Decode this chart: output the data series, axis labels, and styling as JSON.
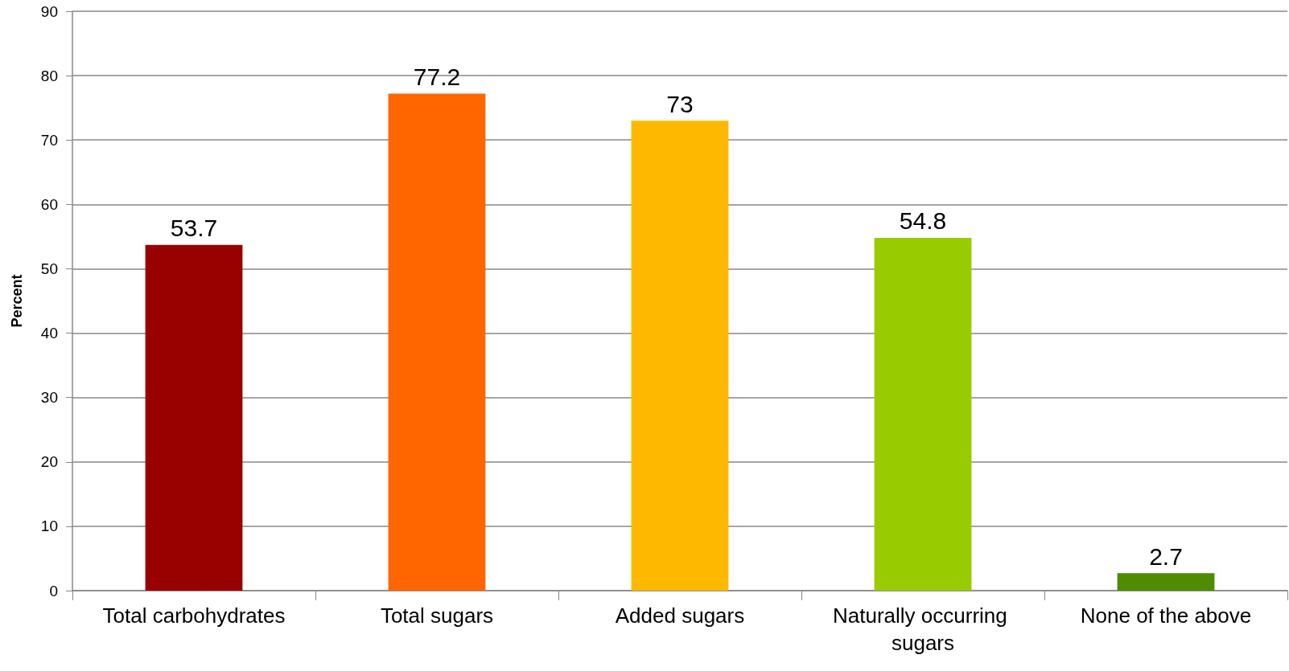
{
  "chart_data": {
    "type": "bar",
    "ylabel": "Percent",
    "categories": [
      "Total carbohydrates",
      "Total sugars",
      "Added sugars",
      "Naturally occurring sugars",
      "None of the above"
    ],
    "values": [
      53.7,
      77.2,
      73,
      54.8,
      2.7
    ],
    "colors": [
      "#990000",
      "#ff6600",
      "#ffb800",
      "#99cc00",
      "#4e8c00"
    ],
    "ylim": [
      0,
      90
    ],
    "yticks": [
      0,
      10,
      20,
      30,
      40,
      50,
      60,
      70,
      80,
      90
    ],
    "grid": "y",
    "data_labels": true
  }
}
